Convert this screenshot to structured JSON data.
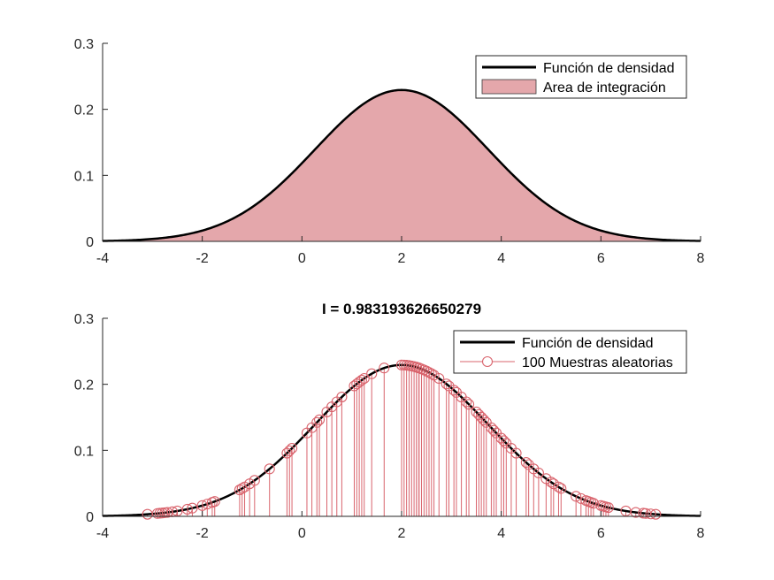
{
  "figure": {
    "background": "#ffffff"
  },
  "chart_data": [
    {
      "type": "area",
      "title": "",
      "xlabel": "",
      "ylabel": "",
      "xlim": [
        -4,
        8
      ],
      "ylim": [
        0,
        0.3
      ],
      "xticks": [
        "-4",
        "-2",
        "0",
        "2",
        "4",
        "6",
        "8"
      ],
      "yticks": [
        "0",
        "0.1",
        "0.2",
        "0.3"
      ],
      "grid": false,
      "legend_position": "top-right",
      "density": {
        "mean": 2,
        "std": 1.74,
        "range": [
          -4,
          8
        ]
      },
      "series": [
        {
          "name": "Función de densidad",
          "kind": "line",
          "color": "#000000"
        },
        {
          "name": "Area de integración",
          "kind": "area",
          "color": "#e4a7ab",
          "edge": "#000000"
        }
      ]
    },
    {
      "type": "line",
      "title": "I = 0.983193626650279",
      "xlabel": "",
      "ylabel": "",
      "xlim": [
        -4,
        8
      ],
      "ylim": [
        0,
        0.3
      ],
      "xticks": [
        "-4",
        "-2",
        "0",
        "2",
        "4",
        "6",
        "8"
      ],
      "yticks": [
        "0",
        "0.1",
        "0.2",
        "0.3"
      ],
      "grid": false,
      "legend_position": "top-right",
      "density": {
        "mean": 2,
        "std": 1.74,
        "range": [
          -4,
          8
        ]
      },
      "series": [
        {
          "name": "Función de densidad",
          "kind": "line",
          "color": "#000000"
        },
        {
          "name": "100 Muestras aleatorias",
          "kind": "stem",
          "color": "#d9646d",
          "x": [
            -3.1,
            -2.9,
            -2.85,
            -2.8,
            -2.75,
            -2.7,
            -2.6,
            -2.5,
            -2.3,
            -2.2,
            -2.0,
            -1.9,
            -1.8,
            -1.75,
            -1.25,
            -1.2,
            -1.15,
            -1.05,
            -0.95,
            -0.65,
            -0.3,
            -0.25,
            -0.2,
            0.1,
            0.2,
            0.3,
            0.35,
            0.5,
            0.6,
            0.7,
            0.8,
            1.05,
            1.1,
            1.15,
            1.2,
            1.25,
            1.4,
            1.65,
            2.0,
            2.05,
            2.1,
            2.15,
            2.2,
            2.25,
            2.3,
            2.3,
            2.35,
            2.35,
            2.4,
            2.45,
            2.5,
            2.55,
            2.6,
            2.65,
            2.75,
            2.9,
            2.95,
            3.05,
            3.1,
            3.2,
            3.3,
            3.35,
            3.5,
            3.55,
            3.6,
            3.65,
            3.7,
            3.8,
            3.85,
            3.9,
            4.0,
            4.05,
            4.1,
            4.2,
            4.3,
            4.5,
            4.55,
            4.65,
            4.75,
            4.9,
            5.0,
            5.05,
            5.15,
            5.2,
            5.5,
            5.6,
            5.7,
            5.75,
            5.8,
            5.85,
            6.0,
            6.05,
            6.1,
            6.15,
            6.5,
            6.7,
            6.85,
            6.9,
            7.0,
            7.1
          ]
        }
      ]
    }
  ]
}
